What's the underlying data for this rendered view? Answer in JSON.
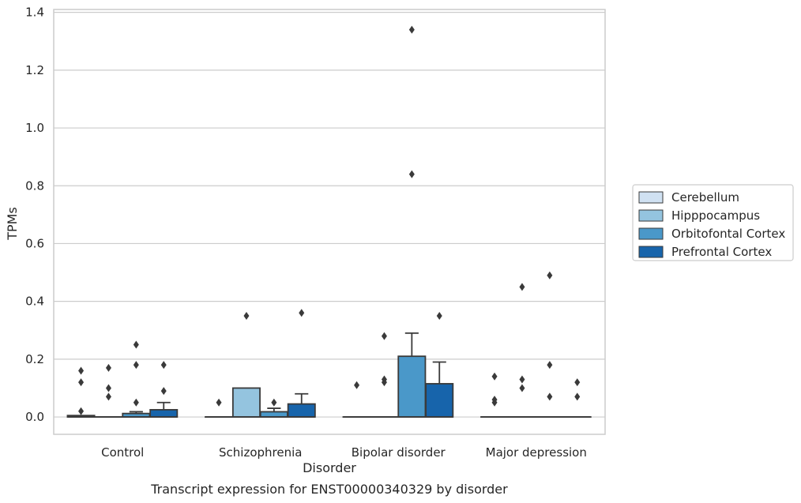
{
  "chart_data": {
    "type": "box",
    "title": "",
    "caption": "Transcript expression for ENST00000340329 by disorder",
    "xlabel": "Disorder",
    "ylabel": "TPMs",
    "ylim": [
      -0.06,
      1.41
    ],
    "yticks": [
      0.0,
      0.2,
      0.4,
      0.6,
      0.8,
      1.0,
      1.2,
      1.4
    ],
    "ytick_labels": [
      "0.0",
      "0.2",
      "0.4",
      "0.6",
      "0.8",
      "1.0",
      "1.2",
      "1.4"
    ],
    "grid": "horizontal",
    "legend_position": "right",
    "categories": [
      "Control",
      "Schizophrenia",
      "Bipolar disorder",
      "Major depression"
    ],
    "series": [
      {
        "name": "Cerebellum",
        "color": "#d0e1f2",
        "boxes": [
          {
            "q1": 0.0,
            "median": 0.0,
            "q3": 0.005,
            "whisker_low": 0.0,
            "whisker_high": 0.005,
            "outliers": [
              0.02,
              0.12,
              0.16
            ]
          },
          {
            "q1": 0.0,
            "median": 0.0,
            "q3": 0.0,
            "whisker_low": 0.0,
            "whisker_high": 0.0,
            "outliers": [
              0.05
            ]
          },
          {
            "q1": 0.0,
            "median": 0.0,
            "q3": 0.0,
            "whisker_low": 0.0,
            "whisker_high": 0.0,
            "outliers": [
              0.11
            ]
          },
          {
            "q1": 0.0,
            "median": 0.0,
            "q3": 0.0,
            "whisker_low": 0.0,
            "whisker_high": 0.0,
            "outliers": [
              0.05,
              0.06,
              0.14
            ]
          }
        ]
      },
      {
        "name": "Hipppocampus",
        "color": "#94c4df",
        "boxes": [
          {
            "q1": 0.0,
            "median": 0.0,
            "q3": 0.0,
            "whisker_low": 0.0,
            "whisker_high": 0.0,
            "outliers": [
              0.07,
              0.1,
              0.17
            ]
          },
          {
            "q1": 0.0,
            "median": 0.0,
            "q3": 0.1,
            "whisker_low": 0.0,
            "whisker_high": 0.1,
            "outliers": [
              0.35
            ]
          },
          {
            "q1": 0.0,
            "median": 0.0,
            "q3": 0.0,
            "whisker_low": 0.0,
            "whisker_high": 0.0,
            "outliers": [
              0.12,
              0.13,
              0.28
            ]
          },
          {
            "q1": 0.0,
            "median": 0.0,
            "q3": 0.0,
            "whisker_low": 0.0,
            "whisker_high": 0.0,
            "outliers": [
              0.1,
              0.13,
              0.45
            ]
          }
        ]
      },
      {
        "name": "Orbitofontal Cortex",
        "color": "#4a98c9",
        "boxes": [
          {
            "q1": 0.0,
            "median": 0.0,
            "q3": 0.012,
            "whisker_low": 0.0,
            "whisker_high": 0.018,
            "outliers": [
              0.05,
              0.18,
              0.25
            ]
          },
          {
            "q1": 0.0,
            "median": 0.0,
            "q3": 0.018,
            "whisker_low": 0.0,
            "whisker_high": 0.03,
            "outliers": [
              0.05
            ]
          },
          {
            "q1": 0.0,
            "median": 0.0,
            "q3": 0.21,
            "whisker_low": 0.0,
            "whisker_high": 0.29,
            "outliers": [
              0.84,
              1.34
            ]
          },
          {
            "q1": 0.0,
            "median": 0.0,
            "q3": 0.0,
            "whisker_low": 0.0,
            "whisker_high": 0.0,
            "outliers": [
              0.07,
              0.18,
              0.49
            ]
          }
        ]
      },
      {
        "name": "Prefrontal Cortex",
        "color": "#1764ab",
        "boxes": [
          {
            "q1": 0.0,
            "median": 0.0,
            "q3": 0.025,
            "whisker_low": 0.0,
            "whisker_high": 0.05,
            "outliers": [
              0.09,
              0.18
            ]
          },
          {
            "q1": 0.0,
            "median": 0.0,
            "q3": 0.045,
            "whisker_low": 0.0,
            "whisker_high": 0.08,
            "outliers": [
              0.36
            ]
          },
          {
            "q1": 0.0,
            "median": 0.0,
            "q3": 0.115,
            "whisker_low": 0.0,
            "whisker_high": 0.19,
            "outliers": [
              0.35
            ]
          },
          {
            "q1": 0.0,
            "median": 0.0,
            "q3": 0.0,
            "whisker_low": 0.0,
            "whisker_high": 0.0,
            "outliers": [
              0.07,
              0.12
            ]
          }
        ]
      }
    ]
  }
}
